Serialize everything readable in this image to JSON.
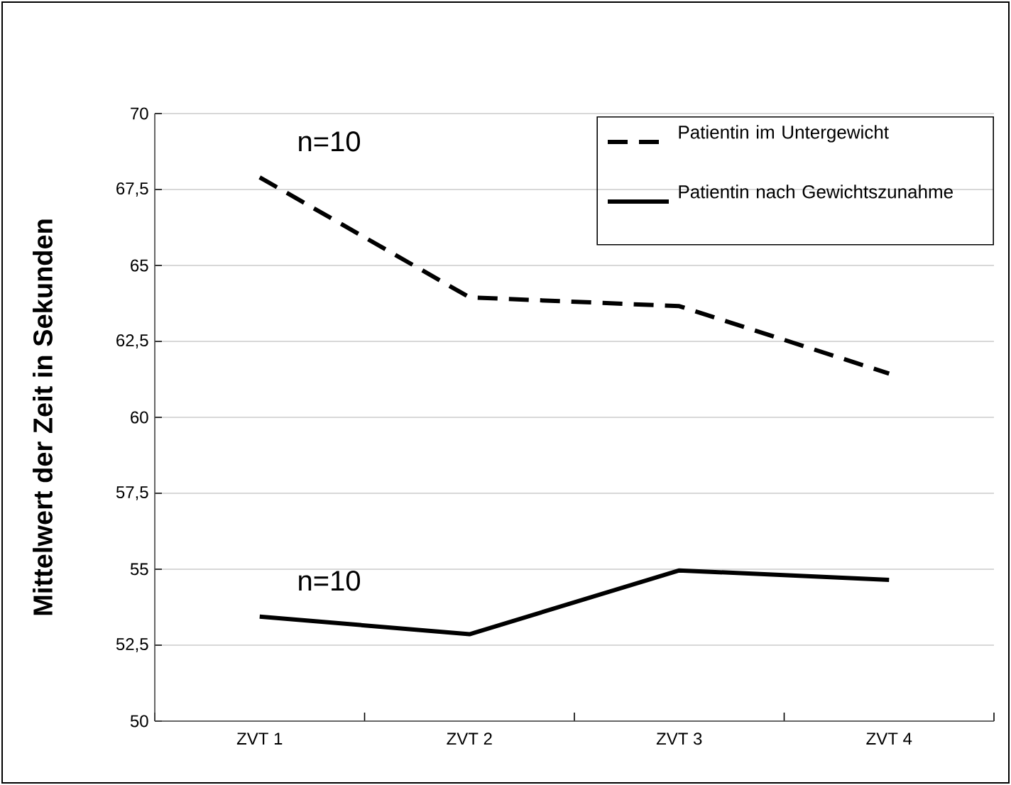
{
  "chart_data": {
    "type": "line",
    "ylabel": "Mittelwert der Zeit in Sekunden",
    "categories": [
      "ZVT 1",
      "ZVT 2",
      "ZVT 3",
      "ZVT 4"
    ],
    "series": [
      {
        "name": "Patientin im Untergewicht",
        "color": "#000000",
        "line_style": "dashed",
        "values": [
          67.9,
          63.95,
          63.66,
          61.44
        ]
      },
      {
        "name": "Patientin nach Gewichtszunahme",
        "color": "#000000",
        "line_style": "solid",
        "values": [
          53.44,
          52.86,
          54.96,
          54.65
        ]
      }
    ],
    "annotations": [
      "n=10",
      "n=10"
    ],
    "ylim": [
      50,
      70
    ],
    "yticks": [
      50,
      {
        "value": 52.5,
        "label": "52,5"
      },
      55,
      {
        "value": 57.5,
        "label": "57,5"
      },
      60,
      {
        "value": 62.5,
        "label": "62,5"
      },
      65,
      {
        "value": 67.5,
        "label": "67,5"
      },
      70
    ],
    "grid": "y",
    "legend": "top right",
    "marker": "none"
  }
}
